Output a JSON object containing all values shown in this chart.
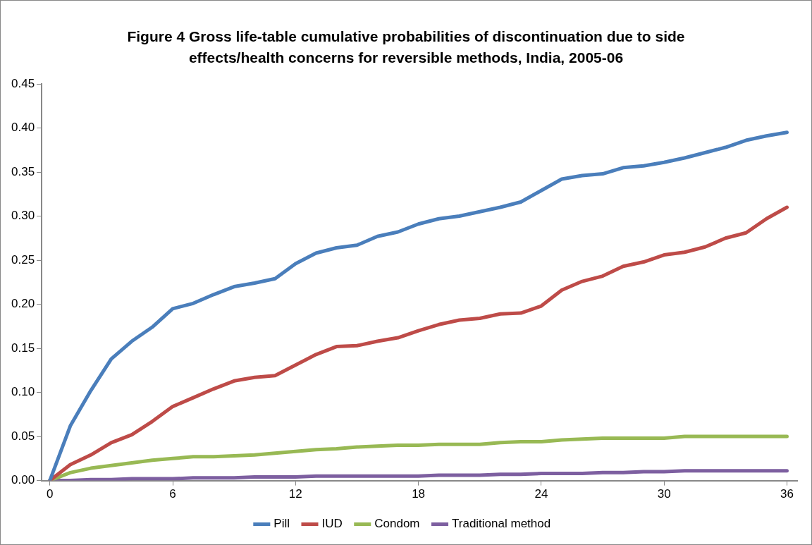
{
  "chart_data": {
    "type": "line",
    "title": "Figure 4 Gross life-table cumulative probabilities of discontinuation due to side effects/health concerns for reversible methods, India, 2005-06",
    "x": [
      0,
      1,
      2,
      3,
      4,
      5,
      6,
      7,
      8,
      9,
      10,
      11,
      12,
      13,
      14,
      15,
      16,
      17,
      18,
      19,
      20,
      21,
      22,
      23,
      24,
      25,
      26,
      27,
      28,
      29,
      30,
      31,
      32,
      33,
      34,
      35,
      36
    ],
    "series": [
      {
        "name": "Pill",
        "color": "#4a7ebb",
        "values": [
          0,
          0.062,
          0.102,
          0.138,
          0.158,
          0.174,
          0.195,
          0.201,
          0.211,
          0.22,
          0.224,
          0.229,
          0.246,
          0.258,
          0.264,
          0.267,
          0.277,
          0.282,
          0.291,
          0.297,
          0.3,
          0.305,
          0.31,
          0.316,
          0.329,
          0.342,
          0.346,
          0.348,
          0.355,
          0.357,
          0.361,
          0.366,
          0.372,
          0.378,
          0.386,
          0.391,
          0.395
        ]
      },
      {
        "name": "IUD",
        "color": "#be4b48",
        "values": [
          0,
          0.018,
          0.029,
          0.043,
          0.052,
          0.067,
          0.084,
          0.094,
          0.104,
          0.113,
          0.117,
          0.119,
          0.131,
          0.143,
          0.152,
          0.153,
          0.158,
          0.162,
          0.17,
          0.177,
          0.182,
          0.184,
          0.189,
          0.19,
          0.198,
          0.216,
          0.226,
          0.232,
          0.243,
          0.248,
          0.256,
          0.259,
          0.265,
          0.275,
          0.281,
          0.297,
          0.31
        ]
      },
      {
        "name": "Condom",
        "color": "#98b954",
        "values": [
          0,
          0.009,
          0.014,
          0.017,
          0.02,
          0.023,
          0.025,
          0.027,
          0.027,
          0.028,
          0.029,
          0.031,
          0.033,
          0.035,
          0.036,
          0.038,
          0.039,
          0.04,
          0.04,
          0.041,
          0.041,
          0.041,
          0.043,
          0.044,
          0.044,
          0.046,
          0.047,
          0.048,
          0.048,
          0.048,
          0.048,
          0.05,
          0.05,
          0.05,
          0.05,
          0.05,
          0.05
        ]
      },
      {
        "name": "Traditional method",
        "color": "#7d5fa0",
        "values": [
          0,
          0,
          0.001,
          0.001,
          0.002,
          0.002,
          0.002,
          0.003,
          0.003,
          0.003,
          0.004,
          0.004,
          0.004,
          0.005,
          0.005,
          0.005,
          0.005,
          0.005,
          0.005,
          0.006,
          0.006,
          0.006,
          0.007,
          0.007,
          0.008,
          0.008,
          0.008,
          0.009,
          0.009,
          0.01,
          0.01,
          0.011,
          0.011,
          0.011,
          0.011,
          0.011,
          0.011
        ]
      }
    ],
    "xlim": [
      -0.4,
      36.5
    ],
    "xticks": [
      0,
      6,
      12,
      18,
      24,
      30,
      36
    ],
    "ylim": [
      0,
      0.45
    ],
    "yticks": [
      {
        "value": 0,
        "label": "0.00"
      },
      {
        "value": 0.05,
        "label": "0.05"
      },
      {
        "value": 0.1,
        "label": "0.10"
      },
      {
        "value": 0.15,
        "label": "0.15"
      },
      {
        "value": 0.2,
        "label": "0.20"
      },
      {
        "value": 0.25,
        "label": "0.25"
      },
      {
        "value": 0.3,
        "label": "0.30"
      },
      {
        "value": 0.35,
        "label": "0.35"
      },
      {
        "value": 0.4,
        "label": "0.40"
      },
      {
        "value": 0.45,
        "label": "0.45"
      }
    ],
    "grid": false,
    "legend": "bottom",
    "marker": "none",
    "line_style": "solid"
  }
}
